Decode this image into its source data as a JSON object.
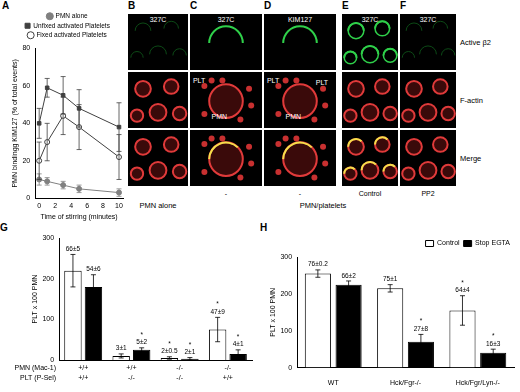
{
  "chart_data": [
    {
      "panel": "A",
      "type": "line",
      "x_label": "Time of stirring (minutes)",
      "y_label": "PMN bindingg KIM127 (% of total events)",
      "x": [
        0,
        1,
        3,
        5,
        10
      ],
      "series": [
        {
          "name": "PMN alone",
          "color": "#808080",
          "marker": "circle",
          "values": [
            10,
            9,
            7,
            5,
            3
          ],
          "errors": [
            3,
            2,
            2,
            2,
            2
          ]
        },
        {
          "name": "Unfixed activated Platelets",
          "color": "#404040",
          "marker": "square",
          "values": [
            40,
            59,
            55,
            48,
            38
          ],
          "errors": [
            8,
            5,
            10,
            10,
            13
          ]
        },
        {
          "name": "Fixed activated Platelets",
          "color": "#404040",
          "marker": "circle-open",
          "values": [
            20,
            30,
            44,
            38,
            22
          ],
          "errors": [
            10,
            10,
            10,
            12,
            12
          ]
        }
      ],
      "xlim": [
        -0.5,
        10.5
      ],
      "xticks": [
        0,
        2,
        4,
        6,
        8,
        10
      ],
      "ylim": [
        0,
        80
      ],
      "yticks": [
        0,
        20,
        40,
        60,
        80
      ],
      "grid": false,
      "legend": "top"
    },
    {
      "panel": "G",
      "type": "bar",
      "y_label": "PLT x 100 PMN",
      "categories": [
        null,
        null,
        null,
        null
      ],
      "genotype_rows": [
        {
          "label": "PMN (Mac-1)",
          "values": [
            "+/+",
            "+/+",
            "-/-",
            "-/-"
          ]
        },
        {
          "label": "PLT (P-Sel)",
          "values": [
            "+/+",
            "-/-",
            "-/-",
            "+/+"
          ]
        }
      ],
      "series": [
        {
          "color": "#ffffff",
          "values": [
            220,
            10,
            5,
            75
          ],
          "errors": [
            40,
            5,
            3,
            30
          ],
          "notes": [
            [
              "66±5"
            ],
            [
              "3±1"
            ],
            [
              "*",
              "2±0.5"
            ],
            [
              "*",
              "47±9"
            ]
          ]
        },
        {
          "color": "#000000",
          "values": [
            180,
            25,
            3,
            15
          ],
          "errors": [
            30,
            5,
            3,
            10
          ],
          "notes": [
            [
              "54±6"
            ],
            [
              "*",
              "5±2"
            ],
            [
              "*",
              "2±1"
            ],
            [
              "*",
              "4±1"
            ]
          ]
        }
      ],
      "ylim": [
        0,
        300
      ],
      "yticks": [
        0,
        100,
        200,
        300
      ],
      "grid": false
    },
    {
      "panel": "H",
      "type": "bar",
      "y_label": "PLT x 100 PMN",
      "categories": [
        "WT",
        "Hck/Fgr-/-",
        "Hck/Fgr/Lyn-/-"
      ],
      "series": [
        {
          "name": "Control",
          "color": "#ffffff",
          "values": [
            255,
            215,
            155
          ],
          "errors": [
            10,
            10,
            40
          ],
          "notes": [
            [
              "76±0.2"
            ],
            [
              "75±1"
            ],
            [
              "*",
              "64±4"
            ]
          ]
        },
        {
          "name": "Stop EGTA",
          "color": "#000000",
          "values": [
            225,
            70,
            40
          ],
          "errors": [
            10,
            20,
            10
          ],
          "notes": [
            [
              "66±2"
            ],
            [
              "*",
              "27±8"
            ],
            [
              "*",
              "16±3"
            ]
          ]
        }
      ],
      "ylim": [
        0,
        300
      ],
      "yticks": [
        0,
        100,
        200,
        300
      ],
      "grid": false,
      "legend": "upper right"
    }
  ],
  "image_figure": {
    "row_labels": [
      "Active β2",
      "F-actin",
      "Merge"
    ],
    "columns": [
      {
        "panel": "B",
        "antibody": "327C"
      },
      {
        "panel": "C",
        "antibody": "327C",
        "treatment": "-",
        "annotations": [
          "PLT",
          "PMN"
        ]
      },
      {
        "panel": "D",
        "antibody": "KIM127",
        "treatment": "-",
        "annotations": [
          "PLT",
          "PMN",
          "PLT"
        ]
      },
      {
        "panel": "E",
        "antibody": "327C",
        "treatment": "Control"
      },
      {
        "panel": "F",
        "antibody": "327C",
        "treatment": "PP2"
      }
    ],
    "groups": [
      {
        "label": "PMN alone",
        "panels": [
          "B"
        ]
      },
      {
        "label": "PMN/platelets",
        "panels": [
          "C",
          "D",
          "E",
          "F"
        ]
      }
    ]
  }
}
